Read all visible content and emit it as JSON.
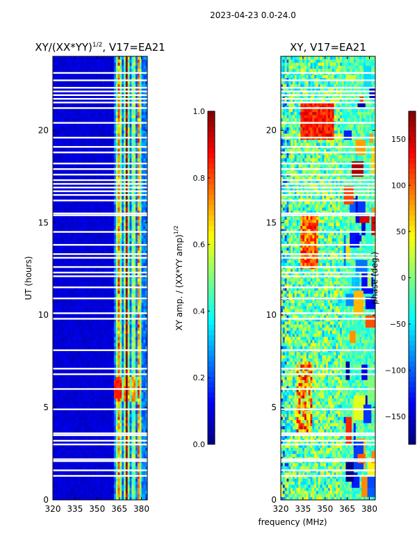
{
  "figure_title": "2023-04-23 0.0-24.0",
  "colors": {
    "jet": [
      "#00007f",
      "#0000ff",
      "#007fff",
      "#00ffff",
      "#7fff7f",
      "#ffff00",
      "#ff7f00",
      "#ff0000",
      "#7f0000"
    ],
    "background_low": "#00008f",
    "flag_gap": "#ffffff",
    "frame": "#000000"
  },
  "chart_data": [
    {
      "type": "heatmap",
      "title_base": "XY/(XX*YY)",
      "title_exponent": "1/2",
      "title_suffix": ", V17=EA21",
      "xlabel": "",
      "ylabel": "UT (hours)",
      "xlim": [
        320,
        384
      ],
      "ylim": [
        0,
        24
      ],
      "xticks": [
        "320",
        "335",
        "350",
        "365",
        "380"
      ],
      "xtick_values": [
        320,
        335,
        350,
        365,
        380
      ],
      "yticks": [
        "0",
        "5",
        "10",
        "15",
        "20"
      ],
      "ytick_values": [
        0,
        5,
        10,
        15,
        20
      ],
      "colorbar": {
        "label_base": "XY amp. / (XX*YY amp)",
        "label_exponent": "1/2",
        "range": [
          0,
          1
        ],
        "ticks": [
          "0.0",
          "0.2",
          "0.4",
          "0.6",
          "0.8",
          "1.0"
        ],
        "tick_values": [
          0,
          0.2,
          0.4,
          0.6,
          0.8,
          1.0
        ]
      },
      "flagged_ut_hours": [
        1.3,
        1.6,
        2.1,
        2.2,
        3.0,
        3.2,
        3.5,
        3.6,
        4.9,
        6.0,
        6.8,
        7.1,
        8.1,
        9.8,
        10.1,
        10.9,
        11.5,
        12.1,
        12.3,
        12.6,
        13.1,
        13.3,
        13.8,
        14.5,
        15.4,
        15.5,
        16.2,
        16.5,
        16.7,
        16.9,
        17.1,
        17.3,
        17.6,
        17.9,
        18.2,
        18.8,
        19.1,
        19.6,
        20.4,
        21.2,
        21.5,
        21.7,
        21.9,
        22.1,
        22.3,
        22.7,
        23.1
      ],
      "bright_channels_mhz": [
        364,
        365,
        369,
        370,
        371,
        375,
        378,
        379
      ],
      "peak_ut_hours": 6.0,
      "peak_freq_mhz": 364
    },
    {
      "type": "heatmap",
      "title": "XY, V17=EA21",
      "xlabel": "frequency (MHz)",
      "ylabel": "",
      "xlim": [
        320,
        384
      ],
      "ylim": [
        0,
        24
      ],
      "xticks": [
        "320",
        "335",
        "350",
        "365",
        "380"
      ],
      "xtick_values": [
        320,
        335,
        350,
        365,
        380
      ],
      "yticks": [
        "0",
        "5",
        "10",
        "15",
        "20"
      ],
      "ytick_values": [
        0,
        5,
        10,
        15,
        20
      ],
      "colorbar": {
        "label": "phase (deg.)",
        "range": [
          -180,
          180
        ],
        "ticks": [
          "−150",
          "−100",
          "−50",
          "0",
          "50",
          "100",
          "150"
        ],
        "tick_values": [
          -150,
          -100,
          -50,
          0,
          50,
          100,
          150
        ]
      },
      "flagged_ut_hours": [
        1.3,
        1.6,
        2.1,
        2.2,
        3.0,
        3.2,
        3.5,
        3.6,
        4.9,
        6.0,
        6.8,
        7.1,
        8.1,
        9.8,
        10.1,
        10.9,
        11.5,
        12.1,
        12.3,
        12.6,
        13.1,
        13.3,
        13.8,
        14.5,
        15.4,
        15.5,
        16.2,
        16.5,
        16.7,
        16.9,
        17.1,
        17.3,
        17.6,
        17.9,
        18.2,
        18.8,
        19.1,
        19.6,
        20.4,
        21.2,
        21.5,
        21.7,
        21.9,
        22.1,
        22.3,
        22.7,
        23.1
      ]
    }
  ]
}
